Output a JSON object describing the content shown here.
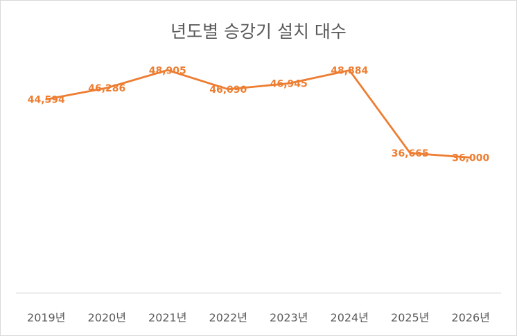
{
  "chart_data": {
    "type": "line",
    "title": "년도별 승강기 설치 대수",
    "categories": [
      "2019년",
      "2020년",
      "2021년",
      "2022년",
      "2023년",
      "2024년",
      "2025년",
      "2026년"
    ],
    "series": [
      {
        "values": [
          44594,
          46286,
          48905,
          46090,
          46945,
          48884,
          36665,
          36000
        ],
        "data_labels": [
          "44,594",
          "46,286",
          "48,905",
          "46,090",
          "46,945",
          "48,884",
          "36,665",
          "36,000"
        ],
        "color": "#ed7d31"
      }
    ],
    "xlabel": "",
    "ylabel": "",
    "ylim": [
      16000,
      52000
    ],
    "grid": false,
    "legend": "none",
    "colors": {
      "line": "#ed7d31",
      "text": "#595959",
      "axis": "#d9d9d9"
    }
  }
}
